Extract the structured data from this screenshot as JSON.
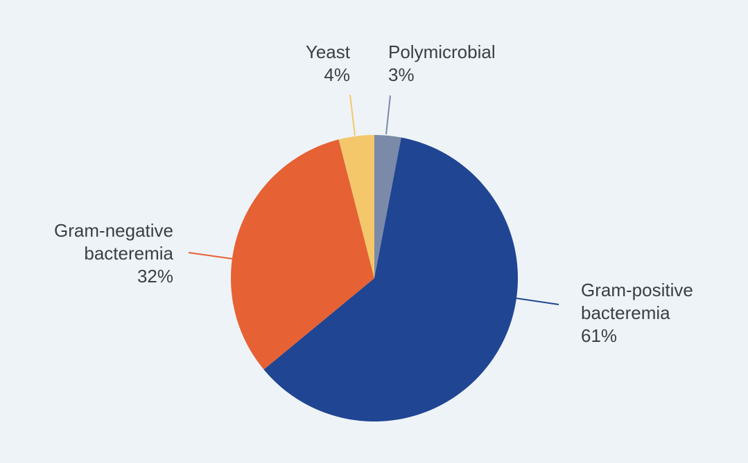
{
  "chart_data": {
    "type": "pie",
    "title": "",
    "slices": [
      {
        "name": "Polymicrobial",
        "value": 3,
        "label": "3%",
        "color": "#7b8aa8"
      },
      {
        "name": "Gram-positive bacteremia",
        "lines": [
          "Gram-positive",
          "bacteremia"
        ],
        "value": 61,
        "label": "61%",
        "color": "#1f4593"
      },
      {
        "name": "Gram-negative bacteremia",
        "lines": [
          "Gram-negative",
          "bacteremia"
        ],
        "value": 32,
        "label": "32%",
        "color": "#e66133"
      },
      {
        "name": "Yeast",
        "value": 4,
        "label": "4%",
        "color": "#f4c86a"
      }
    ],
    "start": "12 o'clock",
    "direction": "clockwise",
    "legend": "none"
  },
  "colors": {
    "background": "#eef3f8",
    "text": "#3a3f45"
  }
}
